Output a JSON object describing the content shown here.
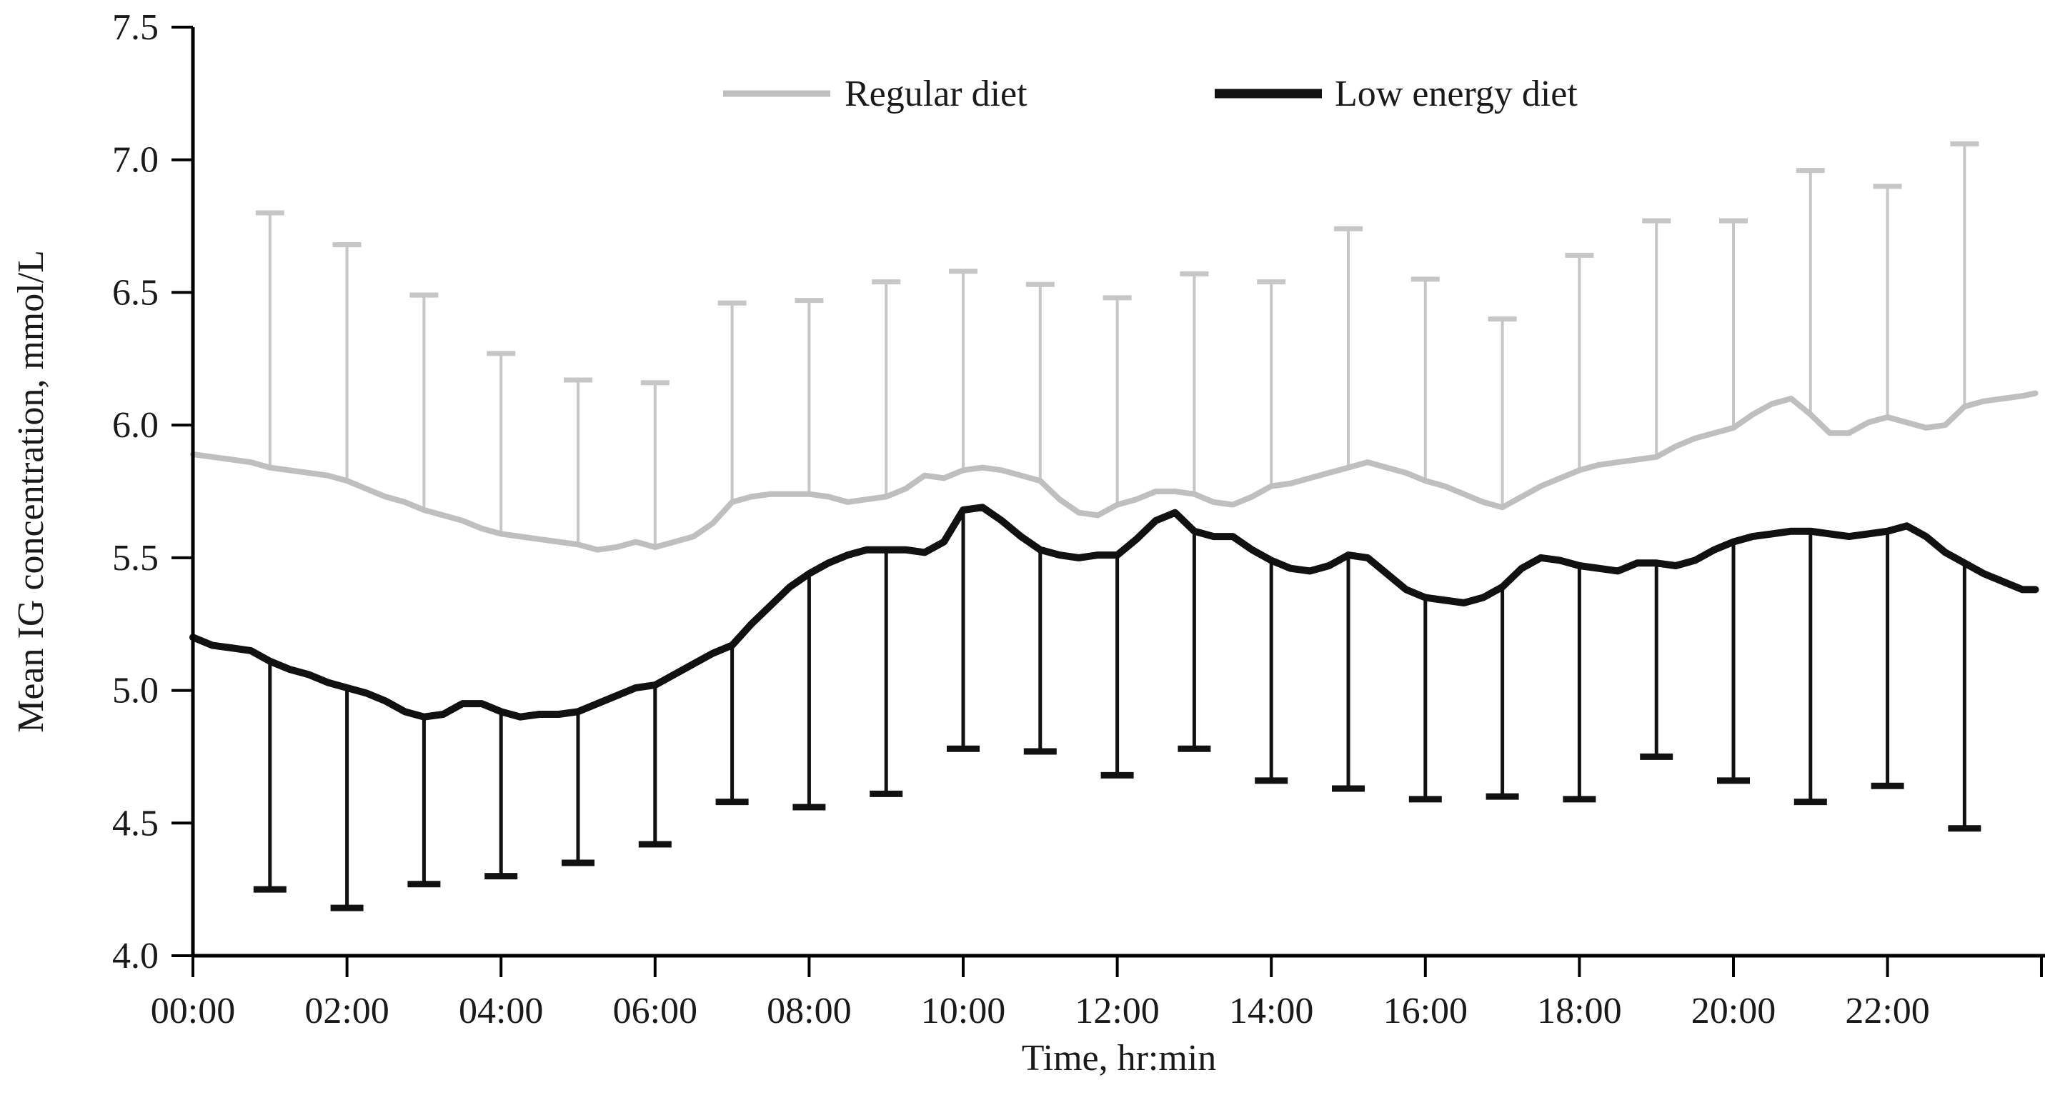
{
  "figure": {
    "background": "#ffffff"
  },
  "legend": {
    "items": [
      {
        "label": "Regular diet",
        "color": "#bfbfbf"
      },
      {
        "label": "Low energy diet",
        "color": "#111111"
      }
    ]
  },
  "chart_data": {
    "type": "line",
    "title": "",
    "xlabel": "Time, hr:min",
    "ylabel": "Mean IG concentration, mmol/L",
    "ylim": [
      4.0,
      7.5
    ],
    "ytick_labels": [
      "4.0",
      "4.5",
      "5.0",
      "5.5",
      "6.0",
      "6.5",
      "7.0",
      "7.5"
    ],
    "xtick_hours": [
      0,
      2,
      4,
      6,
      8,
      10,
      12,
      14,
      16,
      18,
      20,
      22,
      24
    ],
    "xtick_labels": [
      "00:00",
      "02:00",
      "04:00",
      "06:00",
      "08:00",
      "10:00",
      "12:00",
      "14:00",
      "16:00",
      "18:00",
      "20:00",
      "22:00",
      ""
    ],
    "x_step_hours": 0.25,
    "x_end_hour": 23.92,
    "grid": false,
    "legend_position": "top-center",
    "series": [
      {
        "name": "Regular diet",
        "color": "#bfbfbf",
        "error_color": "#c6c6c6",
        "values": [
          5.89,
          5.88,
          5.87,
          5.86,
          5.84,
          5.83,
          5.82,
          5.81,
          5.79,
          5.76,
          5.73,
          5.71,
          5.68,
          5.66,
          5.64,
          5.61,
          5.59,
          5.58,
          5.57,
          5.56,
          5.55,
          5.53,
          5.54,
          5.56,
          5.54,
          5.56,
          5.58,
          5.63,
          5.71,
          5.73,
          5.74,
          5.74,
          5.74,
          5.73,
          5.71,
          5.72,
          5.73,
          5.76,
          5.81,
          5.8,
          5.83,
          5.84,
          5.83,
          5.81,
          5.79,
          5.72,
          5.67,
          5.66,
          5.7,
          5.72,
          5.75,
          5.75,
          5.74,
          5.71,
          5.7,
          5.73,
          5.77,
          5.78,
          5.8,
          5.82,
          5.84,
          5.86,
          5.84,
          5.82,
          5.79,
          5.77,
          5.74,
          5.71,
          5.69,
          5.73,
          5.77,
          5.8,
          5.83,
          5.85,
          5.86,
          5.87,
          5.88,
          5.92,
          5.95,
          5.97,
          5.99,
          6.04,
          6.08,
          6.1,
          6.04,
          5.97,
          5.97,
          6.01,
          6.03,
          6.01,
          5.99,
          6.0,
          6.07,
          6.09,
          6.1,
          6.11,
          6.12
        ],
        "error_bars": {
          "direction": "up",
          "hours": [
            1,
            2,
            3,
            4,
            5,
            6,
            7,
            8,
            9,
            10,
            11,
            12,
            13,
            14,
            15,
            16,
            17,
            18,
            19,
            20,
            21,
            22,
            23
          ],
          "ends": [
            6.8,
            6.68,
            6.49,
            6.27,
            6.17,
            6.16,
            6.46,
            6.47,
            6.54,
            6.58,
            6.53,
            6.48,
            6.57,
            6.54,
            6.74,
            6.55,
            6.4,
            6.64,
            6.77,
            6.77,
            6.96,
            6.9,
            7.06
          ]
        }
      },
      {
        "name": "Low energy diet",
        "color": "#111111",
        "error_color": "#111111",
        "values": [
          5.2,
          5.17,
          5.16,
          5.15,
          5.11,
          5.08,
          5.06,
          5.03,
          5.01,
          4.99,
          4.96,
          4.92,
          4.9,
          4.91,
          4.95,
          4.95,
          4.92,
          4.9,
          4.91,
          4.91,
          4.92,
          4.95,
          4.98,
          5.01,
          5.02,
          5.06,
          5.1,
          5.14,
          5.17,
          5.25,
          5.32,
          5.39,
          5.44,
          5.48,
          5.51,
          5.53,
          5.53,
          5.53,
          5.52,
          5.56,
          5.68,
          5.69,
          5.64,
          5.58,
          5.53,
          5.51,
          5.5,
          5.51,
          5.51,
          5.57,
          5.64,
          5.67,
          5.6,
          5.58,
          5.58,
          5.53,
          5.49,
          5.46,
          5.45,
          5.47,
          5.51,
          5.5,
          5.44,
          5.38,
          5.35,
          5.34,
          5.33,
          5.35,
          5.39,
          5.46,
          5.5,
          5.49,
          5.47,
          5.46,
          5.45,
          5.48,
          5.48,
          5.47,
          5.49,
          5.53,
          5.56,
          5.58,
          5.59,
          5.6,
          5.6,
          5.59,
          5.58,
          5.59,
          5.6,
          5.62,
          5.58,
          5.52,
          5.48,
          5.44,
          5.41,
          5.38,
          5.38
        ],
        "error_bars": {
          "direction": "down",
          "hours": [
            1,
            2,
            3,
            4,
            5,
            6,
            7,
            8,
            9,
            10,
            11,
            12,
            13,
            14,
            15,
            16,
            17,
            18,
            19,
            20,
            21,
            22,
            23
          ],
          "ends": [
            4.25,
            4.18,
            4.27,
            4.3,
            4.35,
            4.42,
            4.58,
            4.56,
            4.61,
            4.78,
            4.77,
            4.68,
            4.78,
            4.66,
            4.63,
            4.59,
            4.6,
            4.59,
            4.75,
            4.66,
            4.58,
            4.64,
            4.48
          ]
        }
      }
    ]
  }
}
